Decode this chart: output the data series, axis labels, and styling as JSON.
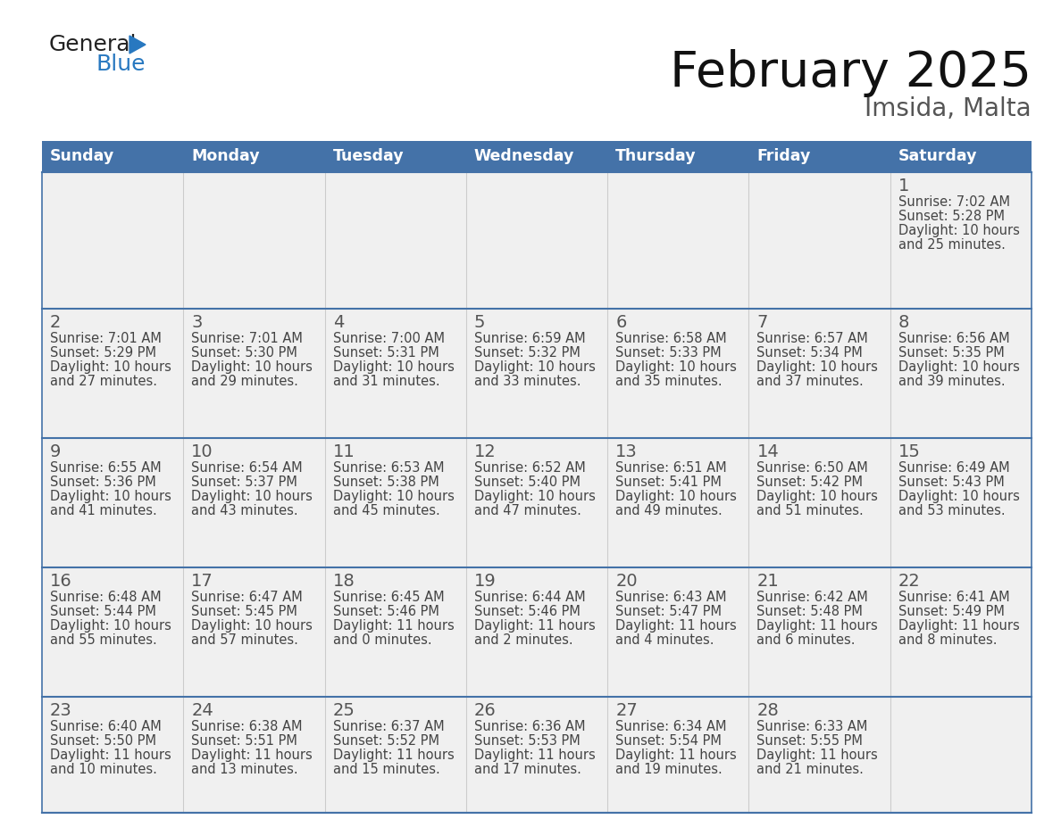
{
  "title": "February 2025",
  "subtitle": "Imsida, Malta",
  "days_of_week": [
    "Sunday",
    "Monday",
    "Tuesday",
    "Wednesday",
    "Thursday",
    "Friday",
    "Saturday"
  ],
  "header_bg": "#4472a8",
  "header_text": "#ffffff",
  "row_bg": "#f0f0f0",
  "border_color": "#4472a8",
  "day_num_color": "#555555",
  "text_color": "#444444",
  "calendar_data": [
    [
      null,
      null,
      null,
      null,
      null,
      null,
      {
        "day": 1,
        "sunrise": "7:02 AM",
        "sunset": "5:28 PM",
        "daylight_h": "10 hours",
        "daylight_m": "and 25 minutes."
      }
    ],
    [
      {
        "day": 2,
        "sunrise": "7:01 AM",
        "sunset": "5:29 PM",
        "daylight_h": "10 hours",
        "daylight_m": "and 27 minutes."
      },
      {
        "day": 3,
        "sunrise": "7:01 AM",
        "sunset": "5:30 PM",
        "daylight_h": "10 hours",
        "daylight_m": "and 29 minutes."
      },
      {
        "day": 4,
        "sunrise": "7:00 AM",
        "sunset": "5:31 PM",
        "daylight_h": "10 hours",
        "daylight_m": "and 31 minutes."
      },
      {
        "day": 5,
        "sunrise": "6:59 AM",
        "sunset": "5:32 PM",
        "daylight_h": "10 hours",
        "daylight_m": "and 33 minutes."
      },
      {
        "day": 6,
        "sunrise": "6:58 AM",
        "sunset": "5:33 PM",
        "daylight_h": "10 hours",
        "daylight_m": "and 35 minutes."
      },
      {
        "day": 7,
        "sunrise": "6:57 AM",
        "sunset": "5:34 PM",
        "daylight_h": "10 hours",
        "daylight_m": "and 37 minutes."
      },
      {
        "day": 8,
        "sunrise": "6:56 AM",
        "sunset": "5:35 PM",
        "daylight_h": "10 hours",
        "daylight_m": "and 39 minutes."
      }
    ],
    [
      {
        "day": 9,
        "sunrise": "6:55 AM",
        "sunset": "5:36 PM",
        "daylight_h": "10 hours",
        "daylight_m": "and 41 minutes."
      },
      {
        "day": 10,
        "sunrise": "6:54 AM",
        "sunset": "5:37 PM",
        "daylight_h": "10 hours",
        "daylight_m": "and 43 minutes."
      },
      {
        "day": 11,
        "sunrise": "6:53 AM",
        "sunset": "5:38 PM",
        "daylight_h": "10 hours",
        "daylight_m": "and 45 minutes."
      },
      {
        "day": 12,
        "sunrise": "6:52 AM",
        "sunset": "5:40 PM",
        "daylight_h": "10 hours",
        "daylight_m": "and 47 minutes."
      },
      {
        "day": 13,
        "sunrise": "6:51 AM",
        "sunset": "5:41 PM",
        "daylight_h": "10 hours",
        "daylight_m": "and 49 minutes."
      },
      {
        "day": 14,
        "sunrise": "6:50 AM",
        "sunset": "5:42 PM",
        "daylight_h": "10 hours",
        "daylight_m": "and 51 minutes."
      },
      {
        "day": 15,
        "sunrise": "6:49 AM",
        "sunset": "5:43 PM",
        "daylight_h": "10 hours",
        "daylight_m": "and 53 minutes."
      }
    ],
    [
      {
        "day": 16,
        "sunrise": "6:48 AM",
        "sunset": "5:44 PM",
        "daylight_h": "10 hours",
        "daylight_m": "and 55 minutes."
      },
      {
        "day": 17,
        "sunrise": "6:47 AM",
        "sunset": "5:45 PM",
        "daylight_h": "10 hours",
        "daylight_m": "and 57 minutes."
      },
      {
        "day": 18,
        "sunrise": "6:45 AM",
        "sunset": "5:46 PM",
        "daylight_h": "11 hours",
        "daylight_m": "and 0 minutes."
      },
      {
        "day": 19,
        "sunrise": "6:44 AM",
        "sunset": "5:46 PM",
        "daylight_h": "11 hours",
        "daylight_m": "and 2 minutes."
      },
      {
        "day": 20,
        "sunrise": "6:43 AM",
        "sunset": "5:47 PM",
        "daylight_h": "11 hours",
        "daylight_m": "and 4 minutes."
      },
      {
        "day": 21,
        "sunrise": "6:42 AM",
        "sunset": "5:48 PM",
        "daylight_h": "11 hours",
        "daylight_m": "and 6 minutes."
      },
      {
        "day": 22,
        "sunrise": "6:41 AM",
        "sunset": "5:49 PM",
        "daylight_h": "11 hours",
        "daylight_m": "and 8 minutes."
      }
    ],
    [
      {
        "day": 23,
        "sunrise": "6:40 AM",
        "sunset": "5:50 PM",
        "daylight_h": "11 hours",
        "daylight_m": "and 10 minutes."
      },
      {
        "day": 24,
        "sunrise": "6:38 AM",
        "sunset": "5:51 PM",
        "daylight_h": "11 hours",
        "daylight_m": "and 13 minutes."
      },
      {
        "day": 25,
        "sunrise": "6:37 AM",
        "sunset": "5:52 PM",
        "daylight_h": "11 hours",
        "daylight_m": "and 15 minutes."
      },
      {
        "day": 26,
        "sunrise": "6:36 AM",
        "sunset": "5:53 PM",
        "daylight_h": "11 hours",
        "daylight_m": "and 17 minutes."
      },
      {
        "day": 27,
        "sunrise": "6:34 AM",
        "sunset": "5:54 PM",
        "daylight_h": "11 hours",
        "daylight_m": "and 19 minutes."
      },
      {
        "day": 28,
        "sunrise": "6:33 AM",
        "sunset": "5:55 PM",
        "daylight_h": "11 hours",
        "daylight_m": "and 21 minutes."
      },
      null
    ]
  ],
  "figsize": [
    11.88,
    9.18
  ],
  "dpi": 100
}
